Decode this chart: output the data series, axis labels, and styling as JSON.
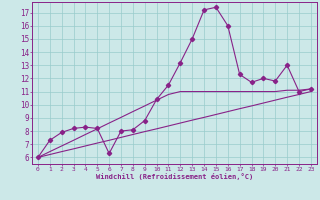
{
  "xlabel": "Windchill (Refroidissement éolien,°C)",
  "bg_color": "#cce8e8",
  "grid_color": "#99cccc",
  "line_color": "#882288",
  "x_values": [
    0,
    1,
    2,
    3,
    4,
    5,
    6,
    7,
    8,
    9,
    10,
    11,
    12,
    13,
    14,
    15,
    16,
    17,
    18,
    19,
    20,
    21,
    22,
    23
  ],
  "y_main": [
    6.0,
    7.3,
    7.9,
    8.2,
    8.3,
    8.2,
    6.3,
    8.0,
    8.1,
    8.8,
    10.4,
    11.5,
    13.2,
    15.0,
    17.2,
    17.4,
    16.0,
    12.3,
    11.7,
    12.0,
    11.8,
    13.0,
    11.0,
    11.2
  ],
  "y_linear1": [
    6.0,
    6.22,
    6.44,
    6.65,
    6.87,
    7.09,
    7.3,
    7.52,
    7.74,
    7.96,
    8.17,
    8.39,
    8.61,
    8.83,
    9.04,
    9.26,
    9.48,
    9.7,
    9.91,
    10.13,
    10.35,
    10.57,
    10.78,
    11.0
  ],
  "y_linear2": [
    6.0,
    6.44,
    6.87,
    7.3,
    7.74,
    8.17,
    8.61,
    9.04,
    9.48,
    9.91,
    10.35,
    10.78,
    11.0,
    11.0,
    11.0,
    11.0,
    11.0,
    11.0,
    11.0,
    11.0,
    11.0,
    11.1,
    11.1,
    11.2
  ],
  "ylim": [
    5.5,
    17.8
  ],
  "xlim": [
    -0.5,
    23.5
  ],
  "yticks": [
    6,
    7,
    8,
    9,
    10,
    11,
    12,
    13,
    14,
    15,
    16,
    17
  ],
  "xticks": [
    0,
    1,
    2,
    3,
    4,
    5,
    6,
    7,
    8,
    9,
    10,
    11,
    12,
    13,
    14,
    15,
    16,
    17,
    18,
    19,
    20,
    21,
    22,
    23
  ]
}
